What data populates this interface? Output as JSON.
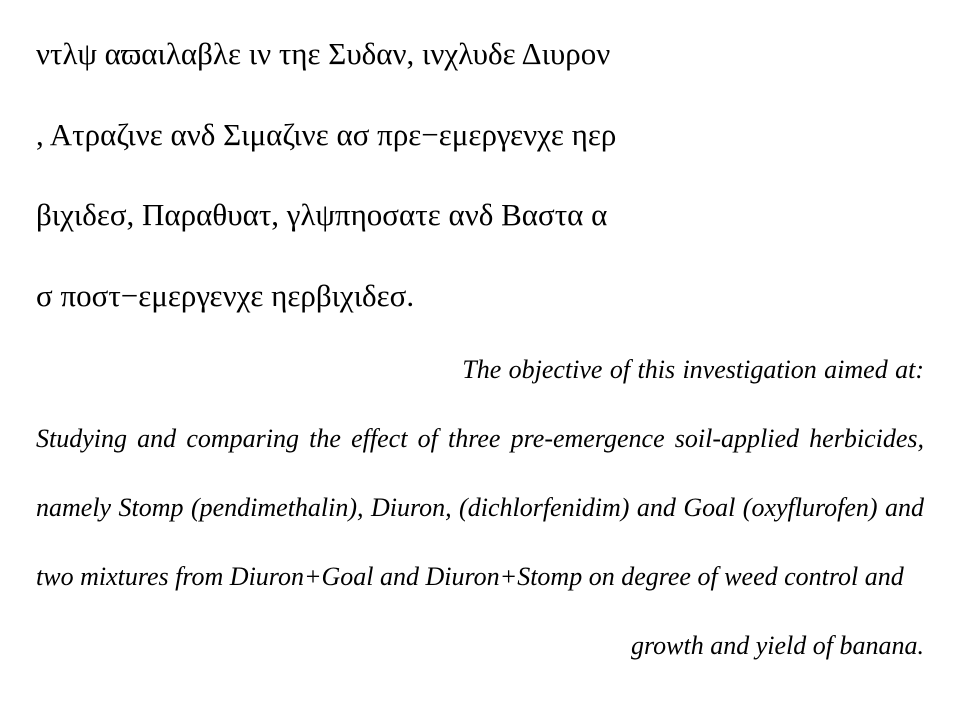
{
  "para1": "ντλψ αϖαιλαβλε ιν τηε Συδαν, ινχλυδε Διυρον",
  "para2": ", Ατραζινε ανδ Σιμαζινε ασ πρε−εμεργενχε ηερ",
  "para3": "βιχιδεσ, Παραθυατ, γλψπηοσατε ανδ Βαστα α",
  "para4": "σ ποστ−εμεργενχε ηερβιχιδεσ.",
  "para5_lead": "The objective of this investigation aimed at: ",
  "para5_body": "Studying and comparing the effect of three pre-emergence soil-applied herbicides, namely Stomp (pendimethalin), Diuron, (dichlorfenidim) and Goal (oxyflurofen) and two mixtures from Diuron+Goal and Diuron+Stomp on degree of weed control and",
  "para6": "growth and yield of banana."
}
